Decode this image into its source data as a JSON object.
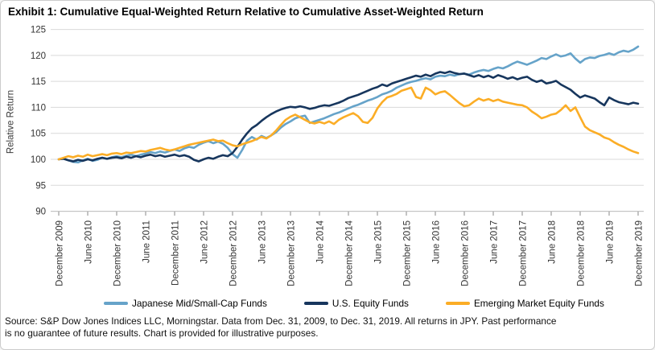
{
  "title": "Exhibit 1: Cumulative Equal-Weighted Return Relative to Cumulative Asset-Weighted Return",
  "source": {
    "line1": "Source: S&P Dow Jones Indices LLC, Morningstar. Data from Dec. 31, 2009, to Dec. 31, 2019. All returns in JPY. Past performance",
    "line2": "is no guarantee of future results. Chart is provided for illustrative purposes."
  },
  "chart_data": {
    "type": "line",
    "title": "Exhibit 1: Cumulative Equal-Weighted Return Relative to Cumulative Asset-Weighted Return",
    "xlabel": "",
    "ylabel": "Relative Return",
    "ylim": [
      90,
      125
    ],
    "yticks": [
      90,
      95,
      100,
      105,
      110,
      115,
      120,
      125
    ],
    "grid": "horizontal",
    "legend_position": "bottom",
    "frequency": "monthly",
    "x_start": "December 2009",
    "x_end": "December 2019",
    "x_tick_labels": [
      "December 2009",
      "June 2010",
      "December 2010",
      "June 2011",
      "December 2011",
      "June 2012",
      "December 2012",
      "June 2013",
      "December 2013",
      "June 2014",
      "December 2014",
      "June 2015",
      "December 2015",
      "June 2016",
      "December 2016",
      "June 2017",
      "December 2017",
      "June 2018",
      "December 2018",
      "June 2019",
      "December 2019"
    ],
    "series": [
      {
        "id": "japanese-mid-small-cap-funds",
        "name": "Japanese Mid/Small-Cap Funds",
        "color": "#66A3C9",
        "values": [
          100,
          100.2,
          99.8,
          99.5,
          99.4,
          99.8,
          100.1,
          99.7,
          99.9,
          100.3,
          100.1,
          100.4,
          100.6,
          100.4,
          100.7,
          100.9,
          100.6,
          100.9,
          101.1,
          101.4,
          101.2,
          101.5,
          101.3,
          101.6,
          101.9,
          101.6,
          102.1,
          102.4,
          102.2,
          102.8,
          103.2,
          103.5,
          103.1,
          103.4,
          103,
          102.2,
          101,
          100.3,
          101.8,
          103.6,
          104.3,
          103.8,
          104.5,
          104.1,
          104.6,
          105.2,
          106.1,
          106.8,
          107.3,
          107.9,
          108.2,
          108.4,
          107,
          107.3,
          107.6,
          107.9,
          108.3,
          108.7,
          109,
          109.4,
          109.8,
          110.2,
          110.5,
          110.9,
          111.3,
          111.6,
          112,
          112.5,
          112.8,
          113.2,
          113.8,
          114.2,
          114.6,
          114.9,
          115.1,
          115.4,
          115.6,
          115.4,
          115.9,
          116.1,
          116,
          116.3,
          116.1,
          116.4,
          116.5,
          116.3,
          116.7,
          117,
          117.2,
          117,
          117.4,
          117.7,
          117.5,
          117.9,
          118.4,
          118.8,
          118.5,
          118.2,
          118.6,
          119,
          119.5,
          119.3,
          119.8,
          120.2,
          119.8,
          120,
          120.4,
          119.4,
          118.6,
          119.3,
          119.6,
          119.5,
          119.9,
          120.1,
          120.4,
          120.1,
          120.6,
          120.9,
          120.7,
          121.1,
          121.7
        ]
      },
      {
        "id": "us-equity-funds",
        "name": "U.S. Equity Funds",
        "color": "#17365D",
        "values": [
          100,
          100.1,
          99.8,
          99.6,
          99.9,
          99.7,
          100,
          99.8,
          100.1,
          100.3,
          100.1,
          100.3,
          100.4,
          100.2,
          100.5,
          100.3,
          100.6,
          100.4,
          100.7,
          100.9,
          100.6,
          100.8,
          100.5,
          100.7,
          100.9,
          100.6,
          100.8,
          100.5,
          99.9,
          99.6,
          100,
          100.3,
          100.1,
          100.5,
          100.8,
          100.6,
          101.2,
          102.4,
          103.8,
          105,
          106,
          106.6,
          107.4,
          108.1,
          108.7,
          109.2,
          109.6,
          109.9,
          110.1,
          110,
          110.2,
          110,
          109.7,
          109.9,
          110.2,
          110.4,
          110.3,
          110.6,
          110.9,
          111.3,
          111.8,
          112.1,
          112.4,
          112.8,
          113.2,
          113.6,
          113.9,
          114.4,
          114.1,
          114.6,
          114.9,
          115.2,
          115.5,
          115.8,
          116.1,
          115.9,
          116.3,
          116,
          116.5,
          116.8,
          116.6,
          116.9,
          116.6,
          116.4,
          116.5,
          116.2,
          115.9,
          116.2,
          115.8,
          116.1,
          115.7,
          116.2,
          115.9,
          115.5,
          115.8,
          115.4,
          115.7,
          115.9,
          115.3,
          114.9,
          115.2,
          114.6,
          114.8,
          115.1,
          114.4,
          113.9,
          113.4,
          112.6,
          111.9,
          112.3,
          112,
          111.7,
          111,
          110.4,
          111.9,
          111.4,
          111,
          110.8,
          110.6,
          110.9,
          110.7
        ]
      },
      {
        "id": "emerging-market-equity-funds",
        "name": "Emerging Market Equity Funds",
        "color": "#FBAD26",
        "values": [
          100,
          100.3,
          100.6,
          100.4,
          100.7,
          100.5,
          100.9,
          100.6,
          100.8,
          101,
          100.8,
          101.1,
          101.2,
          101,
          101.3,
          101.2,
          101.4,
          101.6,
          101.5,
          101.8,
          102,
          102.2,
          101.9,
          101.7,
          101.9,
          102.2,
          102.5,
          102.8,
          103,
          103.2,
          103.4,
          103.6,
          103.8,
          103.5,
          103.6,
          103.1,
          102.7,
          102.5,
          102.9,
          103.2,
          103.5,
          103.9,
          104.3,
          104,
          104.6,
          105.5,
          106.6,
          107.6,
          108.2,
          108.6,
          108.1,
          107.6,
          107.1,
          106.9,
          107.2,
          106.9,
          107.3,
          106.8,
          107.6,
          108.1,
          108.5,
          108.9,
          108.3,
          107.2,
          107,
          108,
          109.8,
          111,
          111.9,
          112.2,
          112.6,
          113.2,
          113.5,
          113.8,
          112,
          111.7,
          113.8,
          113.3,
          112.5,
          112.9,
          113.1,
          112.4,
          111.6,
          110.8,
          110.2,
          110.4,
          111.1,
          111.7,
          111.3,
          111.6,
          111.2,
          111.5,
          111.1,
          110.9,
          110.7,
          110.5,
          110.4,
          110,
          109.2,
          108.6,
          107.9,
          108.2,
          108.6,
          108.8,
          109.5,
          110.4,
          109.3,
          110,
          108.1,
          106.3,
          105.6,
          105.2,
          104.8,
          104.2,
          103.9,
          103.3,
          102.8,
          102.4,
          101.9,
          101.5,
          101.2
        ]
      }
    ]
  }
}
